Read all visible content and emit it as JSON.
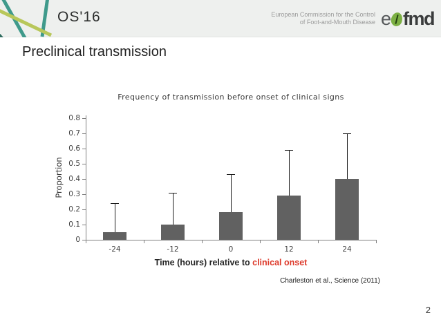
{
  "header": {
    "conference": "OS'16",
    "org_line1": "European Commission for the Control",
    "org_line2": "of Foot-and-Mouth Disease",
    "logo_e": "e",
    "logo_fmd": "fmd",
    "logo_colors": {
      "teal": "#3f9a8b",
      "yellow_green": "#b8c75a",
      "bean_green": "#7cb043"
    }
  },
  "slide": {
    "title": "Preclinical transmission",
    "citation": "Charleston et al., Science (2011)",
    "page_number": "2"
  },
  "chart_data": {
    "type": "bar",
    "title": "Frequency of transmission before onset of clinical signs",
    "categories": [
      "-24",
      "-12",
      "0",
      "12",
      "24"
    ],
    "values": [
      0.05,
      0.1,
      0.18,
      0.29,
      0.4
    ],
    "error_upper": [
      0.24,
      0.31,
      0.43,
      0.59,
      0.7
    ],
    "xlabel_prefix": "Time (hours) relative to ",
    "xlabel_highlight": "clinical onset",
    "ylabel": "Proportion",
    "ylim": [
      0,
      0.8
    ],
    "yticks": [
      "0",
      "0.1",
      "0.2",
      "0.3",
      "0.4",
      "0.5",
      "0.6",
      "0.7",
      "0.8"
    ],
    "grid": false,
    "legend": false,
    "bar_color": "#616161",
    "error_bar_color": "#1a1a1a",
    "axis_color": "#7f7f7f",
    "highlight_color": "#dd3a2b"
  }
}
